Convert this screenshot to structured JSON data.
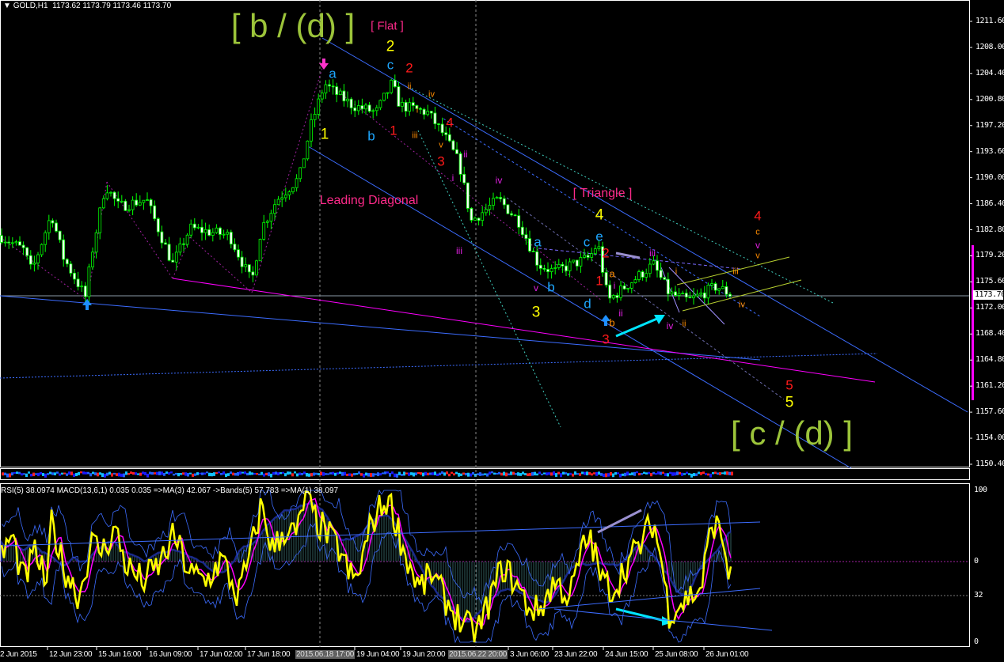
{
  "header": {
    "symbol_timeframe": "GOLD,H1",
    "open": "1173.62",
    "high": "1173.79",
    "low": "1173.46",
    "close": "1173.70"
  },
  "indicator_header": "RSI(5) 38.0974  MACD(13,6,1) 0.035 0.035  =>MA(3) 42.067  ->Bands(5) 57.783  =>MA(1) 38.097",
  "price_axis": [
    "1211.60",
    "1208.00",
    "1204.40",
    "1200.80",
    "1197.20",
    "1193.60",
    "1190.00",
    "1186.40",
    "1182.80",
    "1179.20",
    "1175.60",
    "1172.00",
    "1168.40",
    "1164.80",
    "1161.20",
    "1157.60",
    "1154.00",
    "1150.40"
  ],
  "current_price": "1173.70",
  "oscillator_axis": [
    "100",
    "0",
    "32",
    "0"
  ],
  "time_axis": [
    {
      "label": "2 Jun 2015",
      "highlight": false
    },
    {
      "label": "12 Jun 23:00",
      "highlight": false
    },
    {
      "label": "15 Jun 16:00",
      "highlight": false
    },
    {
      "label": "16 Jun 09:00",
      "highlight": false
    },
    {
      "label": "17 Jun 02:00",
      "highlight": false
    },
    {
      "label": "17 Jun 18:00",
      "highlight": false
    },
    {
      "label": "2015.06.18 17:00",
      "highlight": true
    },
    {
      "label": "19 Jun 04:00",
      "highlight": false
    },
    {
      "label": "19 Jun 20:00",
      "highlight": false
    },
    {
      "label": "2015.06.22 20:00",
      "highlight": true
    },
    {
      "label": "3 Jun 06:00",
      "highlight": false
    },
    {
      "label": "23 Jun 22:00",
      "highlight": false
    },
    {
      "label": "24 Jun 15:00",
      "highlight": false
    },
    {
      "label": "25 Jun 08:00",
      "highlight": false
    },
    {
      "label": "26 Jun 01:00",
      "highlight": false
    }
  ],
  "wave_labels": [
    {
      "text": "[ b / (d) ]",
      "color": "#9cc43a"
    },
    {
      "text": "[ Flat ]",
      "color": "#ff2a8a"
    },
    {
      "text": "2",
      "color": "#ffff00"
    },
    {
      "text": "c",
      "color": "#1ea7ff"
    },
    {
      "text": "2",
      "color": "#ff1a1a"
    },
    {
      "text": "a",
      "color": "#1ea7ff"
    },
    {
      "text": "1",
      "color": "#ffff00"
    },
    {
      "text": "b",
      "color": "#1ea7ff"
    },
    {
      "text": "1",
      "color": "#ff1a1a"
    },
    {
      "text": "ii",
      "color": "#ff8c00"
    },
    {
      "text": "iv",
      "color": "#ff8c00"
    },
    {
      "text": "i",
      "color": "#ff8c00"
    },
    {
      "text": "iii",
      "color": "#ff8c00"
    },
    {
      "text": "4",
      "color": "#ff1a1a"
    },
    {
      "text": "v",
      "color": "#ff8c00"
    },
    {
      "text": "3",
      "color": "#ff1a1a"
    },
    {
      "text": "ii",
      "color": "#e020e0"
    },
    {
      "text": "i",
      "color": "#e020e0"
    },
    {
      "text": "iii",
      "color": "#e020e0"
    },
    {
      "text": "iv",
      "color": "#e020e0"
    },
    {
      "text": "Leading Diagonal",
      "color": "#ff2a8a"
    },
    {
      "text": "[ Triangle ]",
      "color": "#ff2a8a"
    },
    {
      "text": "4",
      "color": "#ffff00"
    },
    {
      "text": "a",
      "color": "#1ea7ff"
    },
    {
      "text": "c",
      "color": "#1ea7ff"
    },
    {
      "text": "e",
      "color": "#1ea7ff"
    },
    {
      "text": "2",
      "color": "#ff1a1a"
    },
    {
      "text": "1",
      "color": "#ff1a1a"
    },
    {
      "text": "a",
      "color": "#ff8c00"
    },
    {
      "text": "i",
      "color": "#e020e0"
    },
    {
      "text": "v",
      "color": "#e020e0"
    },
    {
      "text": "b",
      "color": "#1ea7ff"
    },
    {
      "text": "d",
      "color": "#1ea7ff"
    },
    {
      "text": "3",
      "color": "#ffff00"
    },
    {
      "text": "ii",
      "color": "#e020e0"
    },
    {
      "text": "b",
      "color": "#ff8c00"
    },
    {
      "text": "3",
      "color": "#ff1a1a"
    },
    {
      "text": "iii",
      "color": "#e020e0"
    },
    {
      "text": "i",
      "color": "#ff8c00"
    },
    {
      "text": "iv",
      "color": "#e020e0"
    },
    {
      "text": "ii",
      "color": "#ff8c00"
    },
    {
      "text": "iii",
      "color": "#ff8c00"
    },
    {
      "text": "iv",
      "color": "#ff8c00"
    },
    {
      "text": "4",
      "color": "#ff1a1a"
    },
    {
      "text": "c",
      "color": "#ff8c00"
    },
    {
      "text": "v",
      "color": "#e020e0"
    },
    {
      "text": "v",
      "color": "#ff8c00"
    },
    {
      "text": "5",
      "color": "#ff1a1a"
    },
    {
      "text": "5",
      "color": "#ffff00"
    },
    {
      "text": "[ c / (d) ]",
      "color": "#9cc43a"
    }
  ],
  "chart_data": {
    "type": "candlestick",
    "symbol": "GOLD",
    "timeframe": "H1",
    "last_bar": {
      "open": 1173.62,
      "high": 1173.79,
      "low": 1173.46,
      "close": 1173.7
    },
    "ylim": [
      1150.4,
      1211.6
    ],
    "grid": false,
    "approx_pivots": [
      {
        "near": "12 Jun 23:00",
        "price": 1172.8
      },
      {
        "near": "15 Jun 16:00",
        "price": 1189.5
      },
      {
        "near": "17 Jun 18:00",
        "price": 1175.5
      },
      {
        "near": "2015.06.18 17:00",
        "price": 1205.3
      },
      {
        "near": "19 Jun 04:00",
        "price": 1204.0
      },
      {
        "near": "2015.06.22 20:00",
        "price": 1182.0
      },
      {
        "near": "24 Jun 15:00",
        "price": 1171.0
      },
      {
        "near": "25 Jun 08:00",
        "price": 1178.3
      },
      {
        "near": "26 Jun 01:00",
        "price": 1173.7
      }
    ],
    "oscillator": {
      "rsi_period": 5,
      "rsi_value": 38.0974,
      "macd": "13,6,1",
      "macd_values": [
        0.035,
        0.035
      ],
      "ma3": 42.067,
      "bands5": 57.783,
      "ma1": 38.097,
      "levels": [
        100,
        0,
        32,
        0
      ]
    },
    "colors": {
      "candles": "#00ff00",
      "rsi": "#ffff00",
      "rsi_ma": "#ff00ff",
      "bands": "#3c6cff",
      "histogram": "#2f5a5a"
    }
  }
}
